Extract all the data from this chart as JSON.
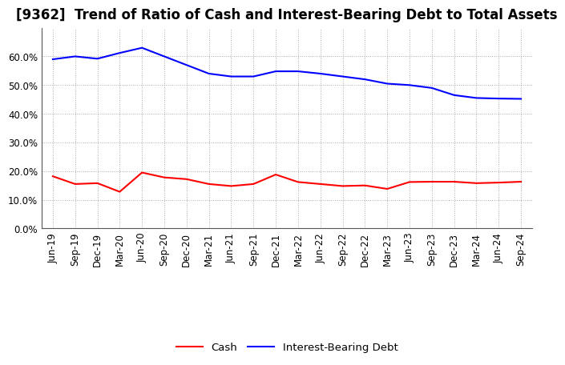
{
  "title": "[9362]  Trend of Ratio of Cash and Interest-Bearing Debt to Total Assets",
  "labels": [
    "Jun-19",
    "Sep-19",
    "Dec-19",
    "Mar-20",
    "Jun-20",
    "Sep-20",
    "Dec-20",
    "Mar-21",
    "Jun-21",
    "Sep-21",
    "Dec-21",
    "Mar-22",
    "Jun-22",
    "Sep-22",
    "Dec-22",
    "Mar-23",
    "Jun-23",
    "Sep-23",
    "Dec-23",
    "Mar-24",
    "Jun-24",
    "Sep-24"
  ],
  "cash": [
    0.182,
    0.155,
    0.158,
    0.128,
    0.195,
    0.178,
    0.172,
    0.155,
    0.148,
    0.155,
    0.188,
    0.162,
    0.155,
    0.148,
    0.15,
    0.138,
    0.162,
    0.163,
    0.163,
    0.158,
    0.16,
    0.163
  ],
  "debt": [
    0.59,
    0.6,
    0.592,
    0.612,
    0.63,
    0.6,
    0.57,
    0.54,
    0.53,
    0.53,
    0.548,
    0.548,
    0.54,
    0.53,
    0.52,
    0.505,
    0.5,
    0.49,
    0.465,
    0.455,
    0.453,
    0.452
  ],
  "cash_color": "#FF0000",
  "debt_color": "#0000FF",
  "background_color": "#FFFFFF",
  "grid_color": "#AAAAAA",
  "ylim": [
    0.0,
    0.7
  ],
  "yticks": [
    0.0,
    0.1,
    0.2,
    0.3,
    0.4,
    0.5,
    0.6
  ],
  "legend_cash": "Cash",
  "legend_debt": "Interest-Bearing Debt",
  "title_fontsize": 12,
  "axis_fontsize": 8.5,
  "legend_fontsize": 9.5
}
